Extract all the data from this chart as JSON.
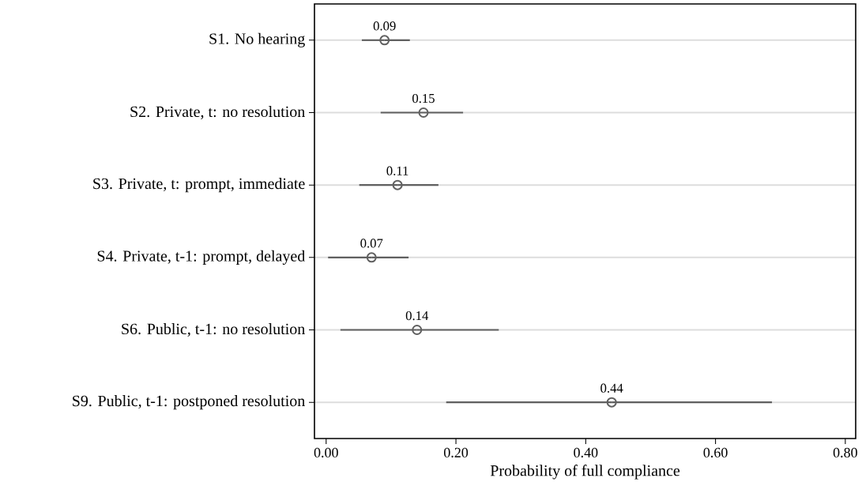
{
  "chart_data": {
    "type": "scatter",
    "xlabel": "Probability of full compliance",
    "categories": [
      "S1. No hearing",
      "S2. Private, t: no resolution",
      "S3. Private, t: prompt, immediate",
      "S4. Private, t-1: prompt, delayed",
      "S6. Public, t-1: no resolution",
      "S9. Public, t-1: postponed resolution"
    ],
    "orientation": "horizontal",
    "values": [
      0.09,
      0.15,
      0.11,
      0.07,
      0.14,
      0.44
    ],
    "errors": [
      [
        0.055,
        0.129
      ],
      [
        0.084,
        0.211
      ],
      [
        0.051,
        0.173
      ],
      [
        0.003,
        0.127
      ],
      [
        0.022,
        0.266
      ],
      [
        0.185,
        0.687
      ]
    ],
    "value_labels": [
      "0.09",
      "0.15",
      "0.11",
      "0.07",
      "0.14",
      "0.44"
    ],
    "color": "#606060",
    "marker": "circle",
    "grid": "y",
    "xlim": [
      -0.018,
      0.816
    ],
    "xticks": [
      {
        "value": 0,
        "label": "0.00"
      },
      {
        "value": 0.2,
        "label": "0.20"
      },
      {
        "value": 0.4,
        "label": "0.40"
      },
      {
        "value": 0.6,
        "label": "0.60"
      },
      {
        "value": 0.8,
        "label": "0.80"
      }
    ]
  }
}
